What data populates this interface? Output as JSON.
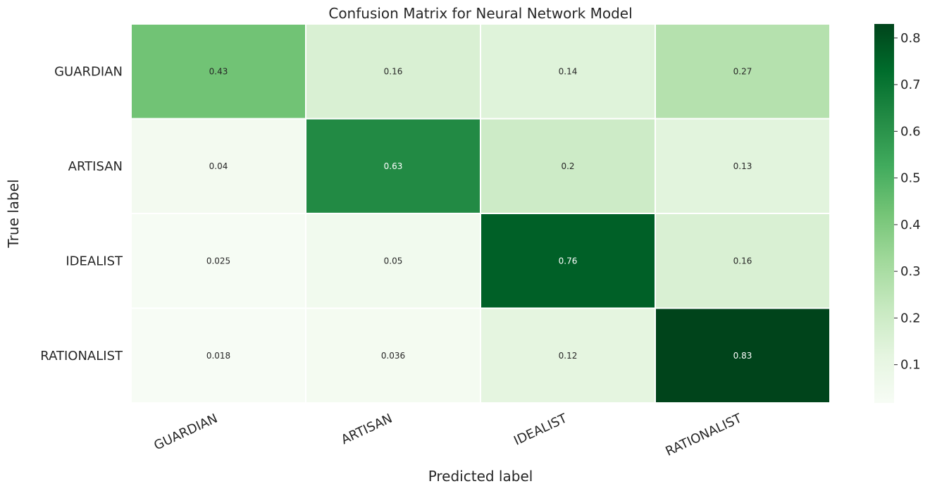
{
  "chart_data": {
    "type": "heatmap",
    "title": "Confusion Matrix for Neural Network Model",
    "xlabel": "Predicted label",
    "ylabel": "True label",
    "x_categories": [
      "GUARDIAN",
      "ARTISAN",
      "IDEALIST",
      "RATIONALIST"
    ],
    "y_categories": [
      "GUARDIAN",
      "ARTISAN",
      "IDEALIST",
      "RATIONALIST"
    ],
    "values": [
      [
        0.43,
        0.16,
        0.14,
        0.27
      ],
      [
        0.04,
        0.63,
        0.2,
        0.13
      ],
      [
        0.025,
        0.05,
        0.76,
        0.16
      ],
      [
        0.018,
        0.036,
        0.12,
        0.83
      ]
    ],
    "annotations": [
      [
        "0.43",
        "0.16",
        "0.14",
        "0.27"
      ],
      [
        "0.04",
        "0.63",
        "0.2",
        "0.13"
      ],
      [
        "0.025",
        "0.05",
        "0.76",
        "0.16"
      ],
      [
        "0.018",
        "0.036",
        "0.12",
        "0.83"
      ]
    ],
    "colormap": "Greens",
    "colorbar": {
      "range": [
        0.018,
        0.83
      ],
      "ticks": [
        0.1,
        0.2,
        0.3,
        0.4,
        0.5,
        0.6,
        0.7,
        0.8
      ],
      "tick_labels": [
        "0.1",
        "0.2",
        "0.3",
        "0.4",
        "0.5",
        "0.6",
        "0.7",
        "0.8"
      ]
    },
    "x_tick_rotation_deg": -25,
    "grid": false
  }
}
